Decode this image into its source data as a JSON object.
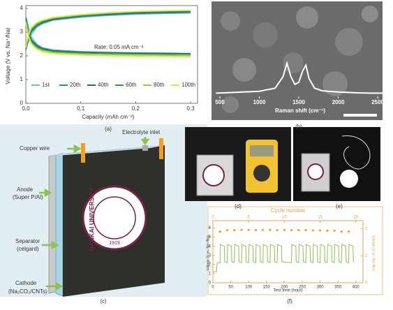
{
  "panel_labels": [
    "(a)",
    "(b)",
    "(c)",
    "(d)",
    "(e)",
    "(f)"
  ],
  "diagram": {
    "copper_wire": "Copper wire",
    "electrolyte_inlet": "Electrolyte inlet",
    "anode": [
      "Anode",
      "(Super P/Al)"
    ],
    "separator": [
      "Separator",
      "(celgard)"
    ],
    "cathode": [
      "Cathode",
      "(Na₂CO₃/CNTs)"
    ],
    "logo": [
      "NANKAI UNIVERSITY",
      "1919"
    ]
  },
  "chart_data": [
    {
      "type": "line",
      "x_label": "Capacity (mAh cm⁻²)",
      "y_label": "Voltage (V vs. Na⁺/Na)",
      "annotation": "Rate: 0.05 mA cm⁻²",
      "x": [
        0,
        0.005,
        0.01,
        0.02,
        0.03,
        0.05,
        0.1,
        0.15,
        0.2,
        0.25,
        0.3
      ],
      "xlim": [
        0,
        0.3
      ],
      "ylim": [
        0,
        4
      ],
      "xticks": [
        {
          "value": 0,
          "label": "0.0"
        },
        0.1,
        0.2,
        0.3
      ],
      "yticks": [
        0,
        1,
        2,
        3,
        4
      ],
      "series": [
        {
          "name": "1st",
          "color": "#5bc0eb",
          "charge": [
            2.25,
            2.6,
            2.9,
            3.2,
            3.35,
            3.5,
            3.62,
            3.7,
            3.75,
            3.78,
            3.8
          ],
          "discharge": [
            3.7,
            3.2,
            2.8,
            2.5,
            2.35,
            2.25,
            2.18,
            2.15,
            2.13,
            2.12,
            2.1
          ]
        },
        {
          "name": "20th",
          "color": "#2e86c1",
          "charge": [
            2.25,
            2.7,
            3.0,
            3.25,
            3.38,
            3.52,
            3.65,
            3.73,
            3.78,
            3.81,
            3.83
          ],
          "discharge": [
            3.6,
            3.0,
            2.7,
            2.45,
            2.32,
            2.23,
            2.17,
            2.14,
            2.12,
            2.11,
            2.1
          ]
        },
        {
          "name": "40th",
          "color": "#1f6f78",
          "charge": [
            2.3,
            2.75,
            3.05,
            3.3,
            3.42,
            3.55,
            3.68,
            3.76,
            3.81,
            3.84,
            3.86
          ],
          "discharge": [
            3.55,
            2.95,
            2.65,
            2.42,
            2.3,
            2.21,
            2.15,
            2.13,
            2.11,
            2.1,
            2.09
          ]
        },
        {
          "name": "60th",
          "color": "#3a9a3a",
          "charge": [
            2.3,
            2.8,
            3.1,
            3.33,
            3.45,
            3.58,
            3.7,
            3.79,
            3.84,
            3.87,
            3.89
          ],
          "discharge": [
            3.5,
            2.9,
            2.6,
            2.38,
            2.27,
            2.18,
            2.12,
            2.1,
            2.08,
            2.07,
            2.06
          ]
        },
        {
          "name": "80th",
          "color": "#9acd32",
          "charge": [
            2.35,
            2.85,
            3.15,
            3.36,
            3.48,
            3.6,
            3.72,
            3.8,
            3.86,
            3.89,
            3.91
          ],
          "discharge": [
            3.45,
            2.85,
            2.55,
            2.33,
            2.23,
            2.14,
            2.08,
            2.05,
            2.03,
            2.02,
            2.01
          ]
        },
        {
          "name": "100th",
          "color": "#e6e62e",
          "charge": [
            2.35,
            2.9,
            3.2,
            3.4,
            3.5,
            3.62,
            3.74,
            3.82,
            3.87,
            3.9,
            3.92
          ],
          "discharge": [
            3.4,
            2.8,
            2.5,
            2.28,
            2.18,
            2.09,
            2.03,
            2.0,
            1.98,
            1.97,
            1.95
          ]
        }
      ]
    },
    {
      "type": "line",
      "x_label": "Raman shift (cm⁻¹)",
      "color": "#ffffff",
      "x": [
        450,
        600,
        800,
        1000,
        1200,
        1300,
        1350,
        1400,
        1450,
        1500,
        1550,
        1590,
        1630,
        1700,
        1800,
        2000,
        2200,
        2400,
        2600
      ],
      "values": [
        0.12,
        0.13,
        0.15,
        0.17,
        0.25,
        0.55,
        0.9,
        0.55,
        0.35,
        0.4,
        0.7,
        0.85,
        0.5,
        0.25,
        0.18,
        0.15,
        0.13,
        0.12,
        0.12
      ],
      "xlim": [
        450,
        2600
      ],
      "ylim": [
        0,
        1
      ],
      "xticks": [
        500,
        1000,
        1500,
        2000,
        2500
      ]
    },
    {
      "type": "line",
      "top_label": "Cycle number",
      "x_label": "Test time (hour)",
      "y_label": "Voltage (V vs. Na⁺/Na)",
      "y2_label": "Voltage (V vs. Na⁺/Na)",
      "xlim": [
        0,
        420
      ],
      "x2lim": [
        0,
        21
      ],
      "ylim": [
        0,
        6.5
      ],
      "y2lim": [
        0,
        2.2
      ],
      "xticks": [
        0,
        50,
        100,
        150,
        200,
        250,
        300,
        350,
        400
      ],
      "x2ticks": [
        0,
        5,
        10,
        15,
        20
      ],
      "yticks": [
        0,
        1,
        2,
        3,
        4,
        5,
        6
      ],
      "y2ticks": [
        0,
        1,
        2
      ],
      "series": [
        {
          "color": "#8cc152",
          "x": [
            0,
            10,
            12,
            20,
            21,
            32,
            33,
            40,
            41,
            52,
            53,
            60,
            61,
            72,
            73,
            80,
            81,
            92,
            93,
            100,
            101,
            112,
            113,
            120,
            121,
            132,
            133,
            140,
            141,
            152,
            153,
            160,
            161,
            172,
            173,
            180,
            181,
            192,
            193,
            220,
            221,
            232,
            233,
            240,
            241,
            252,
            253,
            260,
            261,
            272,
            273,
            280,
            281,
            292,
            293,
            300,
            301,
            312,
            313,
            320,
            321,
            332,
            333,
            340,
            341,
            352,
            353,
            360,
            361,
            372,
            373,
            380,
            381,
            392,
            393
          ],
          "values": [
            1.2,
            1.2,
            2.2,
            2.2,
            4.2,
            4.0,
            2.3,
            2.2,
            4.2,
            4.0,
            2.3,
            2.2,
            4.2,
            4.0,
            2.3,
            2.2,
            4.2,
            4.0,
            2.3,
            2.2,
            4.2,
            4.0,
            2.3,
            2.2,
            4.2,
            4.0,
            2.3,
            2.2,
            4.2,
            4.0,
            2.3,
            2.2,
            4.2,
            4.0,
            2.3,
            2.2,
            4.2,
            4.0,
            2.3,
            2.2,
            4.2,
            4.0,
            2.3,
            2.2,
            4.2,
            4.0,
            2.3,
            2.2,
            4.2,
            4.0,
            2.3,
            2.2,
            4.2,
            4.0,
            2.3,
            2.2,
            4.2,
            4.0,
            2.3,
            2.2,
            4.2,
            4.0,
            2.3,
            2.2,
            4.2,
            4.0,
            2.3,
            2.2,
            4.2,
            4.0,
            2.3,
            2.2,
            4.2,
            4.0,
            2.3
          ]
        },
        {
          "color": "#f39c34",
          "axis": "y2",
          "x_axis": "x2",
          "x": [
            1,
            2,
            3,
            4,
            5,
            6,
            7,
            8,
            9,
            10,
            11,
            12,
            13,
            14,
            15,
            16,
            17,
            18,
            19
          ],
          "values": [
            1.9,
            1.95,
            1.95,
            1.96,
            1.96,
            1.95,
            1.96,
            1.96,
            1.95,
            1.96,
            1.95,
            1.95,
            1.95,
            1.94,
            1.94,
            1.93,
            1.93,
            1.9,
            1.9
          ]
        }
      ]
    }
  ]
}
